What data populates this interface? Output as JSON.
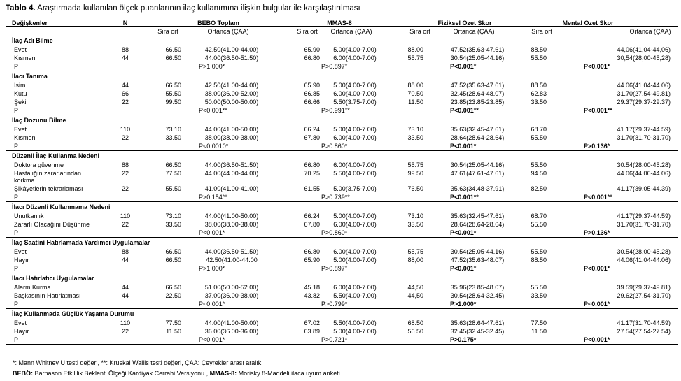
{
  "title": {
    "label": "Tablo 4.",
    "text": "Araştırmada kullanılan ölçek puanlarının ilaç kullanımına ilişkin bulgular ile karşılaştırılması"
  },
  "header": {
    "group_headers": [
      "Değişkenler",
      "N",
      "BEBÖ Toplam",
      "MMAS-8",
      "Fiziksel Özet Skor",
      "Mental Özet Skor"
    ],
    "sub_headers": [
      "Sıra ort",
      "Ortanca (ÇAA)",
      "Sıra ort",
      "Ortanca (ÇAA)",
      "Sıra ort",
      "Ortanca (ÇAA)",
      "Sıra ort",
      "Ortanca (ÇAA)"
    ]
  },
  "sections": [
    {
      "title": "İlaç Adı Bilme",
      "rows": [
        {
          "label": "Evet",
          "n": "88",
          "b_sira": "66.50",
          "b_ort": "42.50(41.00-44.00)",
          "m_sira": "65.90",
          "m_ort": "5.00(4.00-7.00)",
          "f_sira": "88.00",
          "f_ort": "47.52(35.63-47.61)",
          "mt_sira": "88.50",
          "mt_ort": "44,06(41,04-44,06)"
        },
        {
          "label": "Kısmen",
          "n": "44",
          "b_sira": "66.50",
          "b_ort": "44.00(36.50-51.50)",
          "m_sira": "66.80",
          "m_ort": "6.00(4.00-7.00)",
          "f_sira": "55.75",
          "f_ort": "30.54(25.05-44.16)",
          "mt_sira": "55.50",
          "mt_ort": "30,54(28,00-45,28)"
        }
      ],
      "p": {
        "b": "P>1.000*",
        "m": "P>0.897*",
        "f": "P<0.001*",
        "mt": "P<0.001*"
      }
    },
    {
      "title": "İlacı Tanıma",
      "rows": [
        {
          "label": "İsim",
          "n": "44",
          "b_sira": "66.50",
          "b_ort": "42.50(41.00-44.00)",
          "m_sira": "65.90",
          "m_ort": "5.00(4.00-7.00)",
          "f_sira": "88.00",
          "f_ort": "47.52(35.63-47.61)",
          "mt_sira": "88.50",
          "mt_ort": "44.06(41.04-44.06)"
        },
        {
          "label": "Kutu",
          "n": "66",
          "b_sira": "55.50",
          "b_ort": "38.00(36.00-52.00)",
          "m_sira": "66.85",
          "m_ort": "6.00(4.00-7.00)",
          "f_sira": "70.50",
          "f_ort": "32.45(28.64-48.07)",
          "mt_sira": "62.83",
          "mt_ort": "31.70(27.54-49.81)"
        },
        {
          "label": "Şekil",
          "n": "22",
          "b_sira": "99.50",
          "b_ort": "50.00(50.00-50.00)",
          "m_sira": "66.66",
          "m_ort": "5.50(3.75-7.00)",
          "f_sira": "11.50",
          "f_ort": "23.85(23.85-23.85)",
          "mt_sira": "33.50",
          "mt_ort": "29.37(29.37-29.37)"
        }
      ],
      "p": {
        "b": "P<0.001**",
        "m": "P>0.991**",
        "f": "P<0.001**",
        "mt": "P<0.001**"
      }
    },
    {
      "title": "İlaç Dozunu Bilme",
      "rows": [
        {
          "label": "Evet",
          "n": "110",
          "b_sira": "73.10",
          "b_ort": "44.00(41.00-50.00)",
          "m_sira": "66.24",
          "m_ort": "5.00(4.00-7.00)",
          "f_sira": "73.10",
          "f_ort": "35.63(32.45-47.61)",
          "mt_sira": "68.70",
          "mt_ort": "41.17(29.37-44.59)"
        },
        {
          "label": "Kısmen",
          "n": "22",
          "b_sira": "33.50",
          "b_ort": "38.00(38.00-38.00)",
          "m_sira": "67.80",
          "m_ort": "6.00(4.00-7.00)",
          "f_sira": "33.50",
          "f_ort": "28.64(28.64-28.64)",
          "mt_sira": "55.50",
          "mt_ort": "31.70(31.70-31.70)"
        }
      ],
      "p": {
        "b": "P<0.0010*",
        "m": "P>0.860*",
        "f": "P<0.001*",
        "mt": "P>0.136*"
      }
    },
    {
      "title": "Düzenli İlaç Kullanma Nedeni",
      "rows": [
        {
          "label": "Doktora güvenme",
          "n": "88",
          "b_sira": "66.50",
          "b_ort": "44.00(36.50-51.50)",
          "m_sira": "66.80",
          "m_ort": "6.00(4.00-7.00)",
          "f_sira": "55.75",
          "f_ort": "30.54(25.05-44.16)",
          "mt_sira": "55.50",
          "mt_ort": "30.54(28.00-45.28)"
        },
        {
          "label": "Hastalığın zararlarından",
          "label2": "korkma",
          "n": "22",
          "b_sira": "77.50",
          "b_ort": "44.00(44.00-44.00)",
          "m_sira": "70.25",
          "m_ort": "5.50(4.00-7.00)",
          "f_sira": "99.50",
          "f_ort": "47.61(47.61-47.61)",
          "mt_sira": "94.50",
          "mt_ort": "44.06(44.06-44.06)"
        },
        {
          "label": "Şikâyetlerin tekrarlaması",
          "n": "22",
          "b_sira": "55.50",
          "b_ort": "41.00(41.00-41.00)",
          "m_sira": "61.55",
          "m_ort": "5.00(3.75-7.00)",
          "f_sira": "76.50",
          "f_ort": "35.63(34.48-37.91)",
          "mt_sira": "82.50",
          "mt_ort": "41.17(39.05-44.39)"
        }
      ],
      "p": {
        "b": "P>0.154**",
        "m": "P>0.739**",
        "f": "P<0.001**",
        "mt": "P<0.001**"
      }
    },
    {
      "title": "İlacı Düzenli Kullanmama Nedeni",
      "rows": [
        {
          "label": "Unutkanlık",
          "n": "110",
          "b_sira": "73.10",
          "b_ort": "44.00(41.00-50.00)",
          "m_sira": "66.24",
          "m_ort": "5.00(4.00-7.00)",
          "f_sira": "73.10",
          "f_ort": "35.63(32.45-47.61)",
          "mt_sira": "68.70",
          "mt_ort": "41.17(29.37-44.59)"
        },
        {
          "label": "Zararlı Olacağını Düşünme",
          "n": "22",
          "b_sira": "33.50",
          "b_ort": "38.00(38.00-38.00)",
          "m_sira": "67.80",
          "m_ort": "6.00(4.00-7.00)",
          "f_sira": "33.50",
          "f_ort": "28.64(28.64-28.64)",
          "mt_sira": "55.50",
          "mt_ort": "31.70(31.70-31.70)"
        }
      ],
      "p": {
        "b": "P<0.001*",
        "m": "P>0.860*",
        "f": "P<0.001*",
        "mt": "P>0.136*"
      }
    },
    {
      "title": "İlaç Saatini Hatırlamada Yardımcı Uygulamalar",
      "rows": [
        {
          "label": "Evet",
          "n": "88",
          "b_sira": "66.50",
          "b_ort": "44.00(36.50-51.50)",
          "m_sira": "66.80",
          "m_ort": "6.00(4.00-7.00)",
          "f_sira": "55,75",
          "f_ort": "30.54(25.05-44.16)",
          "mt_sira": "55.50",
          "mt_ort": "30.54(28.00-45.28)"
        },
        {
          "label": "Hayır",
          "n": "44",
          "b_sira": "66.50",
          "b_ort": "42.50(41.00-44.00",
          "m_sira": "65.90",
          "m_ort": "5.00(4.00-7.00)",
          "f_sira": "88,00",
          "f_ort": "47.52(35.63-48.07)",
          "mt_sira": "88.50",
          "mt_ort": "44.06(41.04-44.06)"
        }
      ],
      "p": {
        "b": "P>1.000*",
        "m": "P>0.897*",
        "f": "P<0.001*",
        "mt": "P<0.001*"
      }
    },
    {
      "title": "İlacı Hatırlatıcı Uygulamalar",
      "rows": [
        {
          "label": "Alarm Kurma",
          "n": "44",
          "b_sira": "66.50",
          "b_ort": "51.00(50.00-52.00)",
          "m_sira": "45.18",
          "m_ort": "6.00(4.00-7.00)",
          "f_sira": "44,50",
          "f_ort": "35.96(23.85-48.07)",
          "mt_sira": "55.50",
          "mt_ort": "39.59(29.37-49.81)"
        },
        {
          "label": "Başkasının Hatırlatması",
          "n": "44",
          "b_sira": "22.50",
          "b_ort": "37.00(36.00-38.00)",
          "m_sira": "43.82",
          "m_ort": "5.50(4.00-7.00)",
          "f_sira": "44,50",
          "f_ort": "30.54(28.64-32.45)",
          "mt_sira": "33.50",
          "mt_ort": "29.62(27.54-31.70)"
        }
      ],
      "p": {
        "b": "P<0.001*",
        "m": "P>0.799*",
        "f": "P>1.000*",
        "mt": "P<0.001*"
      }
    },
    {
      "title": "İlaç Kullanmada Güçlük Yaşama Durumu",
      "rows": [
        {
          "label": "Evet",
          "n": "110",
          "b_sira": "77.50",
          "b_ort": "44.00(41.00-50.00)",
          "m_sira": "67.02",
          "m_ort": "5.50(4.00-7.00)",
          "f_sira": "68.50",
          "f_ort": "35.63(28.64-47.61)",
          "mt_sira": "77.50",
          "mt_ort": "41.17(31.70-44.59)"
        },
        {
          "label": "Hayır",
          "n": "22",
          "b_sira": "11.50",
          "b_ort": "36.00(36.00-36.00)",
          "m_sira": "63.89",
          "m_ort": "5.00(4.00-7.00)",
          "f_sira": "56.50",
          "f_ort": "32.45(32.45-32.45)",
          "mt_sira": "11.50",
          "mt_ort": "27.54(27.54-27.54)"
        }
      ],
      "p": {
        "b": "P<0.001*",
        "m": "P>0.721*",
        "f": "P>0.175*",
        "mt": "P<0.001*"
      }
    }
  ],
  "footnotes": {
    "line1": "*: Mann Whitney U testi değeri, **: Kruskal Wallis testi değeri, ÇAA: Çeyrekler arası aralık",
    "line2_bebo_label": "BEBÖ:",
    "line2_bebo_text": " Barnason Etkililik Beklenti Ölçeği Kardiyak Cerrahi Versiyonu ,",
    "line2_mmas_label": "MMAS-8:",
    "line2_mmas_text": " Morisky 8-Maddeli ilaca uyum anketi"
  }
}
